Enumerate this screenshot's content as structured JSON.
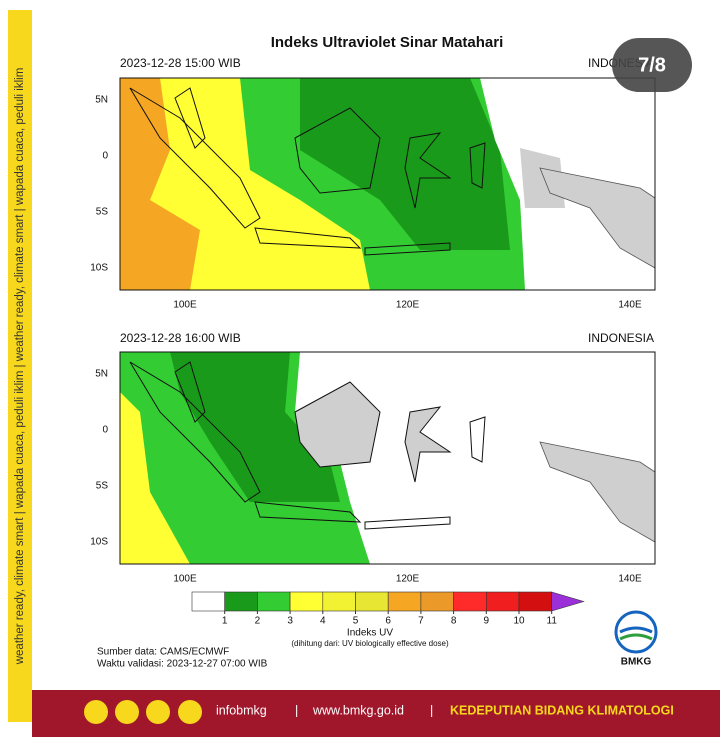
{
  "side_text": "weather ready, climate smart  |  wapada cuaca, peduli iklim  |  weather ready, climate smart  |  wapada cuaca, peduli iklim",
  "counter": "7/8",
  "title": "Indeks Ultraviolet Sinar Matahari",
  "panels": [
    {
      "time": "2023-12-28  15:00 WIB",
      "region": "INDONESIA"
    },
    {
      "time": "2023-12-28  16:00 WIB",
      "region": "INDONESIA"
    }
  ],
  "lat_labels": [
    "5N",
    "0",
    "5S",
    "10S"
  ],
  "lon_labels": [
    "100E",
    "120E",
    "140E"
  ],
  "legend": {
    "title": "Indeks UV",
    "subtitle": "(dihitung dari: UV biologically effective dose)",
    "ticks": [
      1,
      2,
      3,
      4,
      5,
      6,
      7,
      8,
      9,
      10,
      11
    ],
    "colors": [
      "#ffffff",
      "#1a9a1a",
      "#33cc33",
      "#ffff33",
      "#f2f233",
      "#e6e633",
      "#f5a623",
      "#eb9a2a",
      "#ff2b2b",
      "#f01e1e",
      "#d40f0f",
      "#9b30d9"
    ]
  },
  "source": "Sumber data: CAMS/ECMWF",
  "validity": "Waktu validasi: 2023-12-27 07:00 WIB",
  "logo": "BMKG",
  "footer": {
    "handle": "infobmkg",
    "separator": "|",
    "website": "www.bmkg.go.id",
    "department": "KEDEPUTIAN BIDANG KLIMATOLOGI"
  }
}
